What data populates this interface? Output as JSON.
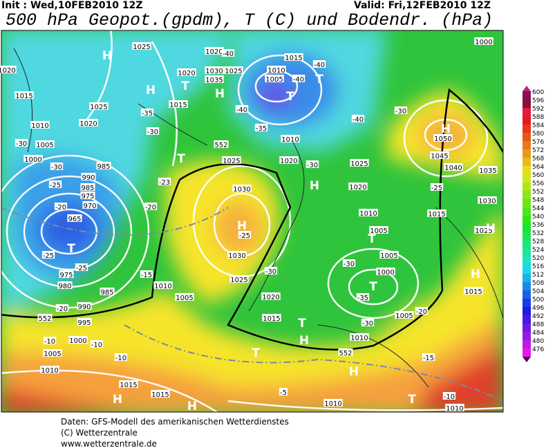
{
  "header": {
    "init": "Init : Wed,10FEB2010 12Z",
    "valid": "Valid: Fri,12FEB2010 12Z",
    "title": "500 hPa Geopot.(gpdm), T (C) und Bodendr. (hPa)"
  },
  "map": {
    "labels": [
      "1025",
      "1020",
      "-40",
      "1015",
      "-40",
      "1030",
      "1025",
      "1010",
      "1005",
      "-40",
      "1020",
      "1035",
      "1015",
      "1025",
      "1015",
      "-35",
      "-40",
      "-30",
      "1020",
      "-30",
      "-35",
      "-40",
      "1010",
      "-30",
      "1005",
      "1010",
      "1000",
      "-30",
      "985",
      "1025",
      "1020",
      "-30",
      "1025",
      "1050",
      "1045",
      "1040",
      "1035",
      "990",
      "-25",
      "-23",
      "1030",
      "1020",
      "-25",
      "985",
      "975",
      "970",
      "-20",
      "-20",
      "1010",
      "1015",
      "965",
      "-25",
      "1005",
      "1030",
      "-25",
      "1005",
      "975",
      "-25",
      "-15",
      "-30",
      "-30",
      "1000",
      "1025",
      "980",
      "1010",
      "985",
      "-35",
      "1020",
      "1005",
      "990",
      "-20",
      "-20",
      "1005",
      "1015",
      "995",
      "-30",
      "1015",
      "-10",
      "1000",
      "-10",
      "1005",
      "-10",
      "1010",
      "1010",
      "-15",
      "1015",
      "1015",
      "-5",
      "1010",
      "-10",
      "1010",
      "1020",
      "1000",
      "1030",
      "1025",
      "552",
      "552",
      "552"
    ],
    "markers": [
      "H",
      "H",
      "T",
      "H",
      "T",
      "T",
      "H",
      "T",
      "H",
      "H",
      "T",
      "T",
      "H",
      "H",
      "T",
      "T",
      "H",
      "T",
      "H",
      "H",
      "H",
      "T"
    ]
  },
  "colorbar": {
    "ticks": [
      600,
      596,
      592,
      588,
      584,
      580,
      576,
      572,
      568,
      564,
      560,
      556,
      552,
      548,
      544,
      540,
      536,
      532,
      528,
      524,
      520,
      516,
      512,
      508,
      504,
      500,
      496,
      492,
      488,
      484,
      480,
      476
    ]
  },
  "footer": [
    "Daten: GFS-Modell des amerikanischen Wetterdienstes",
    "(C) Wetterzentrale",
    "www.wetterzentrale.de"
  ]
}
